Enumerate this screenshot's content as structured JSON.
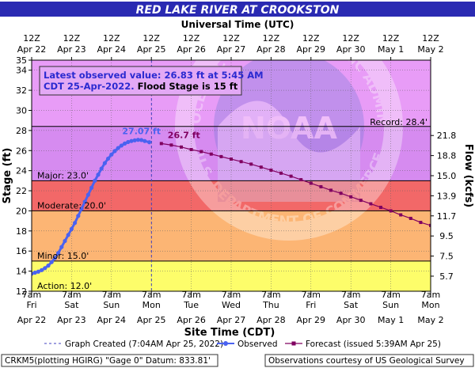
{
  "title": "RED LAKE RIVER AT CROOKSTON",
  "top_axis_title": "Universal Time (UTC)",
  "x_axis_title": "Site Time (CDT)",
  "y_left_label": "Stage (ft)",
  "y_right_label": "Flow (kcfs)",
  "info_box": {
    "line1": "Latest observed value: 26.83 ft at 5:45 AM",
    "line2_prefix": "CDT 25-Apr-2022.",
    "line2_suffix": "Flood Stage is 15 ft"
  },
  "footer": {
    "station": "CRKM5(plotting HGIRG) \"Gage 0\" Datum: 833.81'",
    "courtesy": "Observations courtesy of US Geological Survey"
  },
  "watermark_text": {
    "top": "NATIONAL OCEANIC AND ATMOSPHERIC ADMINISTRATION",
    "center": "NOAA",
    "bottom": "U.S. DEPARTMENT OF COMMERCE"
  },
  "colors": {
    "title_bg": "#2a2ab2",
    "title_fg": "#ffffff",
    "observed": "#4a62f0",
    "forecast": "#800060",
    "record_band": "#e89cf7",
    "major_band": "#d68bf0",
    "major_line": "#c061e0",
    "moderate_band": "#f26868",
    "flood_band": "#fcb574",
    "action_band": "#fdfd6a",
    "below_band": "#ffffff",
    "outer_bg": "#ffffff",
    "graph_created_line": "#4040c0"
  },
  "chart_data": {
    "type": "line",
    "x_unit": "CDT datetime",
    "x_range": [
      "2022-04-22 07:00",
      "2022-05-02 07:00"
    ],
    "ylim": [
      12,
      35
    ],
    "grid": true,
    "y_ticks": [
      12,
      14,
      16,
      18,
      20,
      22,
      24,
      26,
      28,
      30,
      32,
      34,
      35
    ],
    "bottom_ticks": [
      {
        "time": "7am",
        "day": "Fri",
        "date": "Apr 22"
      },
      {
        "time": "7am",
        "day": "Sat",
        "date": "Apr 23"
      },
      {
        "time": "7am",
        "day": "Sun",
        "date": "Apr 24"
      },
      {
        "time": "7am",
        "day": "Mon",
        "date": "Apr 25"
      },
      {
        "time": "7am",
        "day": "Tue",
        "date": "Apr 26"
      },
      {
        "time": "7am",
        "day": "Wed",
        "date": "Apr 27"
      },
      {
        "time": "7am",
        "day": "Thu",
        "date": "Apr 28"
      },
      {
        "time": "7am",
        "day": "Fri",
        "date": "Apr 29"
      },
      {
        "time": "7am",
        "day": "Sat",
        "date": "Apr 30"
      },
      {
        "time": "7am",
        "day": "Sun",
        "date": "May 1"
      },
      {
        "time": "7am",
        "day": "Mon",
        "date": "May 2"
      }
    ],
    "top_ticks": [
      {
        "hour": "12Z",
        "date": "Apr 22"
      },
      {
        "hour": "12Z",
        "date": "Apr 23"
      },
      {
        "hour": "12Z",
        "date": "Apr 24"
      },
      {
        "hour": "12Z",
        "date": "Apr 25"
      },
      {
        "hour": "12Z",
        "date": "Apr 26"
      },
      {
        "hour": "12Z",
        "date": "Apr 27"
      },
      {
        "hour": "12Z",
        "date": "Apr 28"
      },
      {
        "hour": "12Z",
        "date": "Apr 29"
      },
      {
        "hour": "12Z",
        "date": "Apr 30"
      },
      {
        "hour": "12Z",
        "date": "May 1"
      },
      {
        "hour": "12Z",
        "date": "May 2"
      }
    ],
    "flow_ticks": [
      {
        "stage": 13.5,
        "label": "5.7"
      },
      {
        "stage": 15.5,
        "label": "7.5"
      },
      {
        "stage": 17.5,
        "label": "9.5"
      },
      {
        "stage": 19.5,
        "label": "11.7"
      },
      {
        "stage": 21.5,
        "label": "13.9"
      },
      {
        "stage": 23.5,
        "label": "15.0"
      },
      {
        "stage": 25.5,
        "label": "18.8"
      },
      {
        "stage": 27.5,
        "label": "21.8"
      }
    ],
    "thresholds": [
      {
        "name": "Record",
        "label": "Record: 28.4'",
        "value": 28.4
      },
      {
        "name": "Major",
        "label": "Major: 23.0'",
        "value": 23.0
      },
      {
        "name": "Moderate",
        "label": "Moderate: 20.0'",
        "value": 20.0
      },
      {
        "name": "Minor",
        "label": "Minor: 15.0'",
        "value": 15.0
      },
      {
        "name": "Action",
        "label": "Action: 12.0'",
        "value": 12.0
      }
    ],
    "graph_created": {
      "label": "Graph Created (7:04AM Apr 25, 2022)",
      "time": "2022-04-25 07:04"
    },
    "series": [
      {
        "name": "Observed",
        "points": [
          [
            "2022-04-22 07:00",
            13.75
          ],
          [
            "2022-04-22 09:00",
            13.85
          ],
          [
            "2022-04-22 11:00",
            13.95
          ],
          [
            "2022-04-22 13:00",
            14.1
          ],
          [
            "2022-04-22 15:00",
            14.3
          ],
          [
            "2022-04-22 17:00",
            14.55
          ],
          [
            "2022-04-22 19:00",
            14.9
          ],
          [
            "2022-04-22 21:00",
            15.3
          ],
          [
            "2022-04-22 23:00",
            15.8
          ],
          [
            "2022-04-23 01:00",
            16.4
          ],
          [
            "2022-04-23 03:00",
            17.0
          ],
          [
            "2022-04-23 05:00",
            17.6
          ],
          [
            "2022-04-23 07:00",
            18.2
          ],
          [
            "2022-04-23 09:00",
            18.8
          ],
          [
            "2022-04-23 11:00",
            19.5
          ],
          [
            "2022-04-23 13:00",
            20.2
          ],
          [
            "2022-04-23 15:00",
            20.9
          ],
          [
            "2022-04-23 17:00",
            21.6
          ],
          [
            "2022-04-23 19:00",
            22.3
          ],
          [
            "2022-04-23 21:00",
            23.0
          ],
          [
            "2022-04-23 23:00",
            23.6
          ],
          [
            "2022-04-24 01:00",
            24.2
          ],
          [
            "2022-04-24 03:00",
            24.75
          ],
          [
            "2022-04-24 05:00",
            25.2
          ],
          [
            "2022-04-24 07:00",
            25.6
          ],
          [
            "2022-04-24 09:00",
            25.95
          ],
          [
            "2022-04-24 11:00",
            26.25
          ],
          [
            "2022-04-24 13:00",
            26.5
          ],
          [
            "2022-04-24 15:00",
            26.7
          ],
          [
            "2022-04-24 17:00",
            26.85
          ],
          [
            "2022-04-24 19:00",
            26.95
          ],
          [
            "2022-04-24 21:00",
            27.02
          ],
          [
            "2022-04-24 23:00",
            27.07
          ],
          [
            "2022-04-25 01:00",
            27.05
          ],
          [
            "2022-04-25 03:00",
            26.95
          ],
          [
            "2022-04-25 05:45",
            26.83
          ]
        ]
      },
      {
        "name": "Forecast (issued 5:39AM Apr 25)",
        "points": [
          [
            "2022-04-25 13:00",
            26.7
          ],
          [
            "2022-04-25 19:00",
            26.55
          ],
          [
            "2022-04-26 01:00",
            26.35
          ],
          [
            "2022-04-26 07:00",
            26.1
          ],
          [
            "2022-04-26 13:00",
            25.9
          ],
          [
            "2022-04-26 19:00",
            25.65
          ],
          [
            "2022-04-27 01:00",
            25.4
          ],
          [
            "2022-04-27 07:00",
            25.15
          ],
          [
            "2022-04-27 13:00",
            24.9
          ],
          [
            "2022-04-27 19:00",
            24.65
          ],
          [
            "2022-04-28 01:00",
            24.35
          ],
          [
            "2022-04-28 07:00",
            24.05
          ],
          [
            "2022-04-28 13:00",
            23.75
          ],
          [
            "2022-04-28 19:00",
            23.45
          ],
          [
            "2022-04-29 01:00",
            23.1
          ],
          [
            "2022-04-29 07:00",
            22.75
          ],
          [
            "2022-04-29 13:00",
            22.4
          ],
          [
            "2022-04-29 19:00",
            22.05
          ],
          [
            "2022-04-30 01:00",
            21.75
          ],
          [
            "2022-04-30 07:00",
            21.4
          ],
          [
            "2022-04-30 13:00",
            21.05
          ],
          [
            "2022-04-30 19:00",
            20.7
          ],
          [
            "2022-05-01 01:00",
            20.35
          ],
          [
            "2022-05-01 07:00",
            20.0
          ],
          [
            "2022-05-01 13:00",
            19.6
          ],
          [
            "2022-05-01 19:00",
            19.25
          ],
          [
            "2022-05-02 01:00",
            18.85
          ],
          [
            "2022-05-02 07:00",
            18.55
          ],
          [
            "2022-05-02 13:00",
            18.2
          ],
          [
            "2022-05-02 19:00",
            17.85
          ],
          [
            "2022-05-03 01:00",
            17.45
          ]
        ]
      }
    ],
    "annotations": [
      {
        "text": "27.07 ft",
        "x": "2022-04-24 23:00",
        "y": 27.07,
        "series": "Observed"
      },
      {
        "text": "26.7 ft",
        "x": "2022-04-25 13:00",
        "y": 26.7,
        "series": "Forecast (issued 5:39AM Apr 25)"
      }
    ],
    "legend": {
      "placement": "bottom",
      "observed_label": "Observed",
      "forecast_label": "Forecast (issued 5:39AM Apr 25)"
    }
  }
}
